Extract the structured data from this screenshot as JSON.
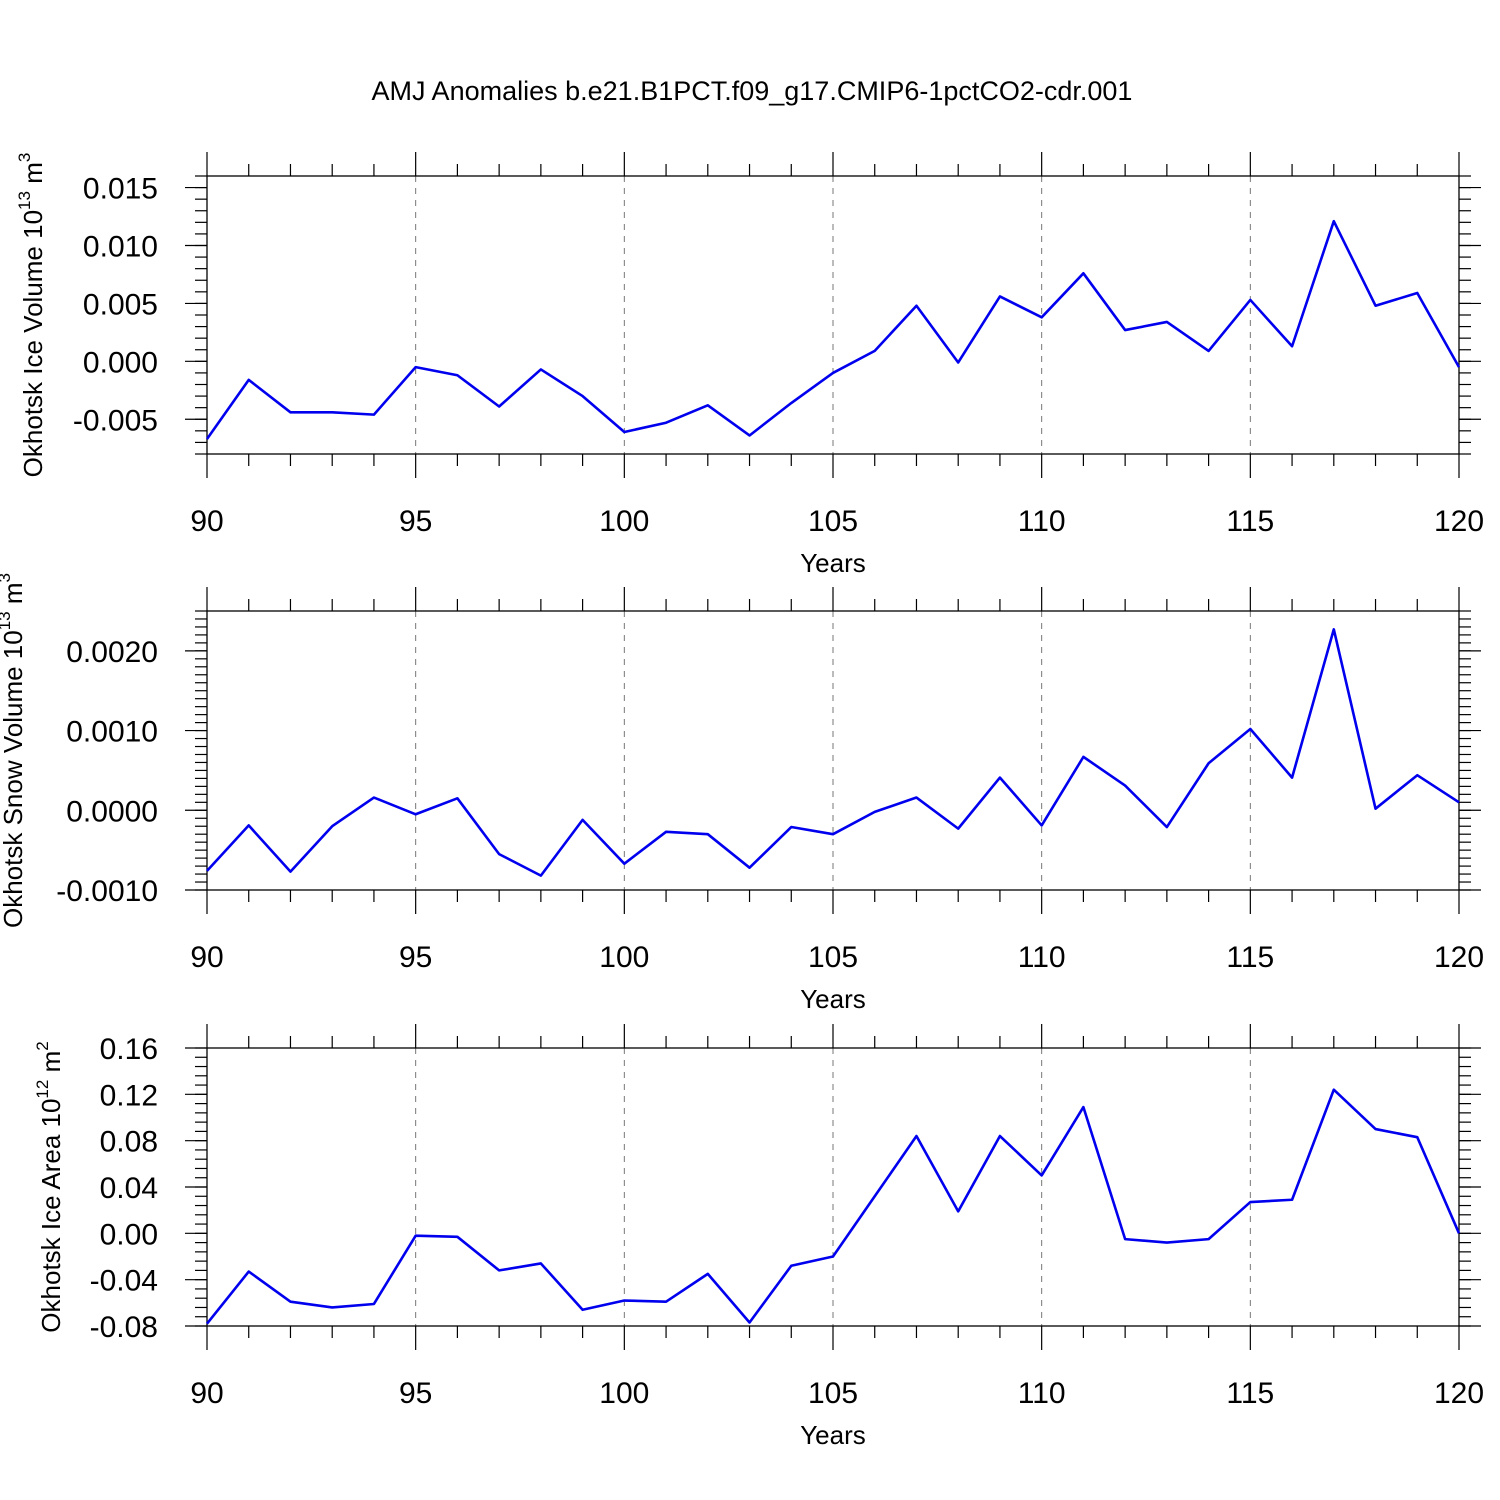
{
  "title": "AMJ Anomalies b.e21.B1PCT.f09_g17.CMIP6-1pctCO2-cdr.001",
  "colors": {
    "line": "#0000ee",
    "grid": "#777777"
  },
  "chart_data": [
    {
      "type": "line",
      "xlabel": "Years",
      "ylabel": "Okhotsk Ice Volume 10",
      "ylabel_sup": "13",
      "ylabel_unit": " m",
      "ylabel_unit_sup": "3",
      "xlim": [
        90,
        120
      ],
      "ylim": [
        -0.008,
        0.016
      ],
      "x_ticks": [
        "90",
        "95",
        "100",
        "105",
        "110",
        "115",
        "120"
      ],
      "y_ticks": [
        "-0.005",
        "0.000",
        "0.005",
        "0.010",
        "0.015"
      ],
      "grid": "vertical dashed at major x ticks",
      "x": [
        90,
        91,
        92,
        93,
        94,
        95,
        96,
        97,
        98,
        99,
        100,
        101,
        102,
        103,
        104,
        105,
        106,
        107,
        108,
        109,
        110,
        111,
        112,
        113,
        114,
        115,
        116,
        117,
        118,
        119,
        120
      ],
      "series": [
        {
          "values": [
            -0.0067,
            -0.0016,
            -0.0044,
            -0.0044,
            -0.0046,
            -0.0005,
            -0.0012,
            -0.0039,
            -0.0007,
            -0.003,
            -0.0061,
            -0.0053,
            -0.0038,
            -0.0064,
            -0.0036,
            -0.001,
            0.0009,
            0.0048,
            -0.0001,
            0.0056,
            0.0038,
            0.0076,
            0.0027,
            0.0034,
            0.0009,
            0.0053,
            0.0013,
            0.0121,
            0.0048,
            0.0059,
            -0.0005
          ]
        }
      ]
    },
    {
      "type": "line",
      "xlabel": "Years",
      "ylabel": "Okhotsk Snow Volume 10",
      "ylabel_sup": "13",
      "ylabel_unit": " m",
      "ylabel_unit_sup": "3",
      "xlim": [
        90,
        120
      ],
      "ylim": [
        -0.001,
        0.0025
      ],
      "x_ticks": [
        "90",
        "95",
        "100",
        "105",
        "110",
        "115",
        "120"
      ],
      "y_ticks": [
        "-0.0010",
        "0.0000",
        "0.0010",
        "0.0020"
      ],
      "grid": "vertical dashed at major x ticks",
      "x": [
        90,
        91,
        92,
        93,
        94,
        95,
        96,
        97,
        98,
        99,
        100,
        101,
        102,
        103,
        104,
        105,
        106,
        107,
        108,
        109,
        110,
        111,
        112,
        113,
        114,
        115,
        116,
        117,
        118,
        119,
        120
      ],
      "series": [
        {
          "values": [
            -0.00076,
            -0.00019,
            -0.00077,
            -0.0002,
            0.00016,
            -5e-05,
            0.00015,
            -0.00055,
            -0.00082,
            -0.00012,
            -0.00067,
            -0.00027,
            -0.0003,
            -0.00072,
            -0.00021,
            -0.0003,
            -2e-05,
            0.00016,
            -0.00023,
            0.00041,
            -0.00019,
            0.00067,
            0.00031,
            -0.00021,
            0.00059,
            0.00102,
            0.00041,
            0.00227,
            2e-05,
            0.00044,
            0.0001
          ]
        }
      ]
    },
    {
      "type": "line",
      "xlabel": "Years",
      "ylabel": "Okhotsk Ice Area 10",
      "ylabel_sup": "12",
      "ylabel_unit": " m",
      "ylabel_unit_sup": "2",
      "xlim": [
        90,
        120
      ],
      "ylim": [
        -0.08,
        0.16
      ],
      "x_ticks": [
        "90",
        "95",
        "100",
        "105",
        "110",
        "115",
        "120"
      ],
      "y_ticks": [
        "-0.08",
        "-0.04",
        "0.00",
        "0.04",
        "0.08",
        "0.12",
        "0.16"
      ],
      "grid": "vertical dashed at major x ticks",
      "x": [
        90,
        91,
        92,
        93,
        94,
        95,
        96,
        97,
        98,
        99,
        100,
        101,
        102,
        103,
        104,
        105,
        106,
        107,
        108,
        109,
        110,
        111,
        112,
        113,
        114,
        115,
        116,
        117,
        118,
        119,
        120
      ],
      "series": [
        {
          "values": [
            -0.078,
            -0.033,
            -0.059,
            -0.064,
            -0.061,
            -0.002,
            -0.003,
            -0.032,
            -0.026,
            -0.066,
            -0.058,
            -0.059,
            -0.035,
            -0.077,
            -0.028,
            -0.02,
            0.032,
            0.084,
            0.019,
            0.084,
            0.05,
            0.109,
            -0.005,
            -0.008,
            -0.005,
            0.027,
            0.029,
            0.124,
            0.09,
            0.083,
            0.0
          ]
        }
      ]
    }
  ]
}
